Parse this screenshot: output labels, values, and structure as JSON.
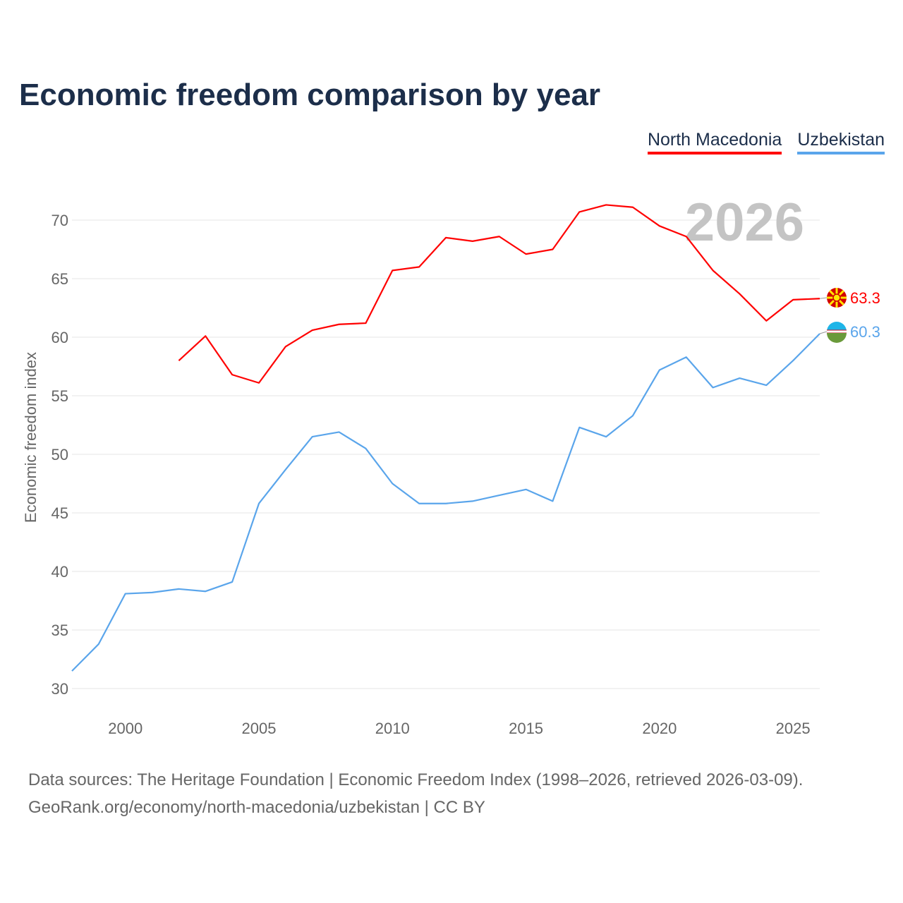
{
  "chart_data": {
    "type": "line",
    "title": "Economic freedom comparison by year",
    "xlabel": "",
    "ylabel": "Economic freedom index",
    "xlim": [
      1998,
      2026
    ],
    "ylim": [
      30,
      72
    ],
    "yticks": [
      30,
      35,
      40,
      45,
      50,
      55,
      60,
      65,
      70
    ],
    "xticks": [
      2000,
      2005,
      2010,
      2015,
      2020,
      2025
    ],
    "grid": true,
    "legend_position": "top-right",
    "year_watermark": "2026",
    "series": [
      {
        "name": "North Macedonia",
        "color": "#ff0000",
        "end_label": "63.3",
        "x": [
          2002,
          2003,
          2004,
          2005,
          2006,
          2007,
          2008,
          2009,
          2010,
          2011,
          2012,
          2013,
          2014,
          2015,
          2016,
          2017,
          2018,
          2019,
          2020,
          2021,
          2022,
          2023,
          2024,
          2025,
          2026
        ],
        "values": [
          58.0,
          60.1,
          56.8,
          56.1,
          59.2,
          60.6,
          61.1,
          61.2,
          65.7,
          66.0,
          68.5,
          68.2,
          68.6,
          67.1,
          67.5,
          70.7,
          71.3,
          71.1,
          69.5,
          68.6,
          65.7,
          63.7,
          61.4,
          63.2,
          63.3
        ]
      },
      {
        "name": "Uzbekistan",
        "color": "#5aa5eb",
        "end_label": "60.3",
        "x": [
          1998,
          1999,
          2000,
          2001,
          2002,
          2003,
          2004,
          2005,
          2006,
          2007,
          2008,
          2009,
          2010,
          2011,
          2012,
          2013,
          2014,
          2015,
          2016,
          2017,
          2018,
          2019,
          2020,
          2021,
          2022,
          2023,
          2024,
          2025,
          2026
        ],
        "values": [
          31.5,
          33.8,
          38.1,
          38.2,
          38.5,
          38.3,
          39.1,
          45.8,
          48.7,
          51.5,
          51.9,
          50.5,
          47.5,
          45.8,
          45.8,
          46.0,
          46.5,
          47.0,
          46.0,
          52.3,
          51.5,
          53.3,
          57.2,
          58.3,
          55.7,
          56.5,
          55.9,
          58.0,
          60.3
        ]
      }
    ]
  },
  "footer": {
    "line1": "Data sources: The Heritage Foundation | Economic Freedom Index (1998–2026, retrieved 2026-03-09).",
    "line2": "GeoRank.org/economy/north-macedonia/uzbekistan | CC BY"
  }
}
